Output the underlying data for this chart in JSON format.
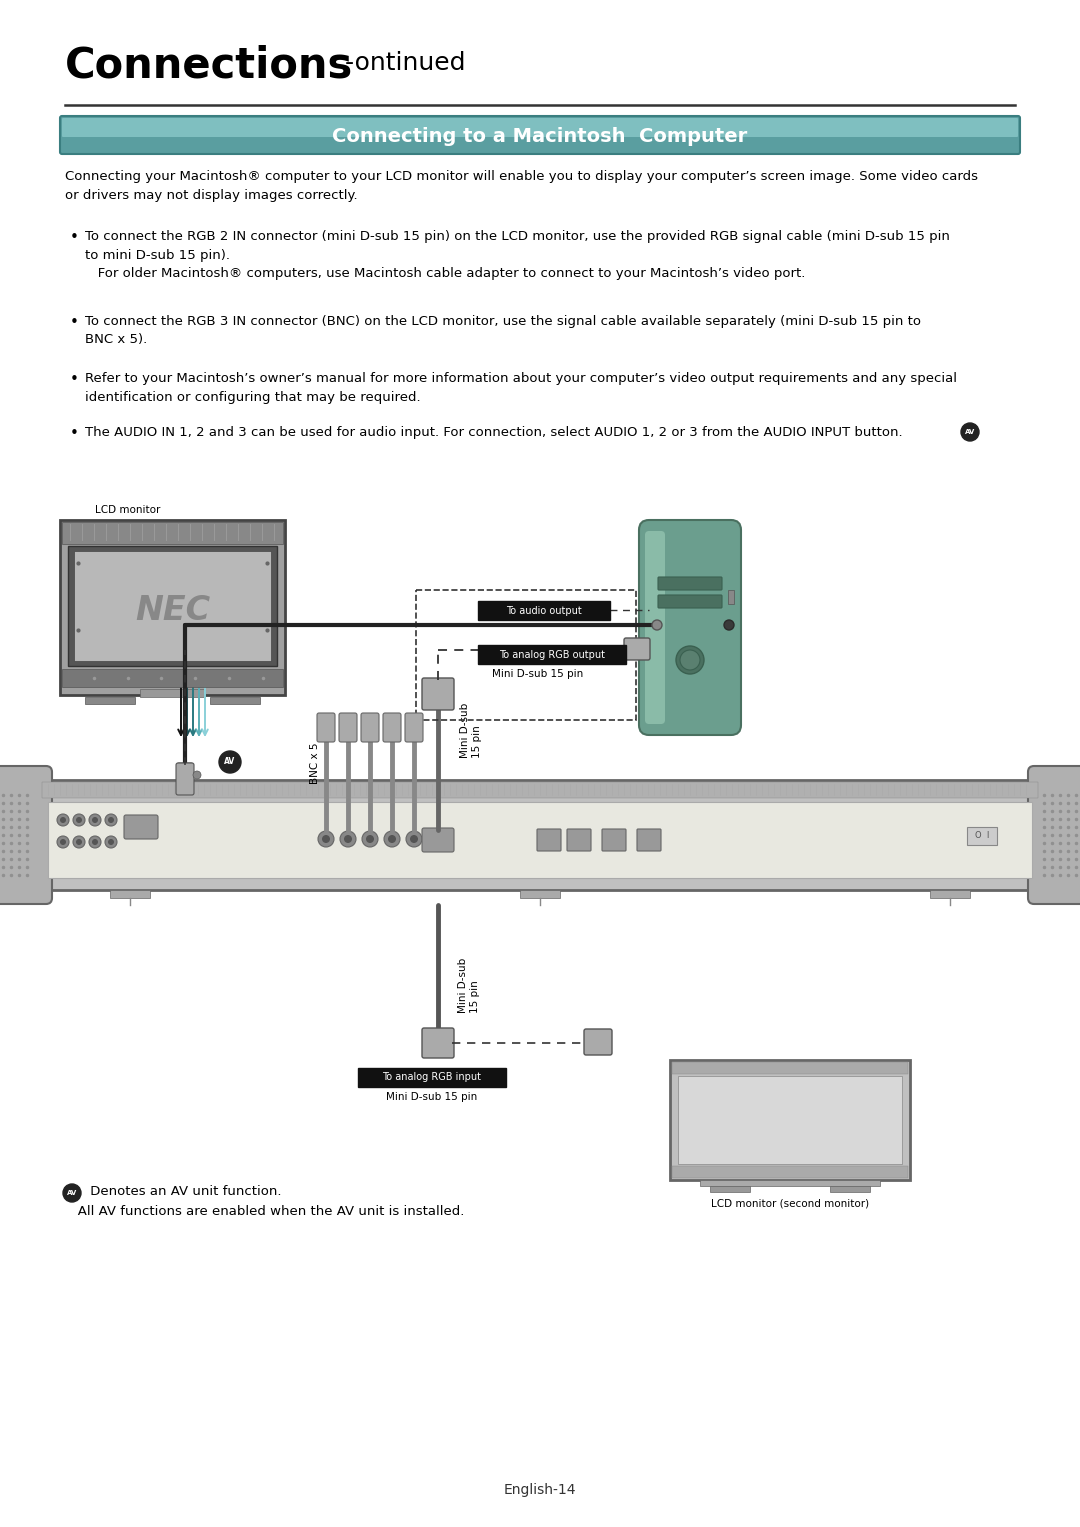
{
  "title_bold": "Connections",
  "title_suffix": " -ontinued",
  "section_title": "Connecting to a Macintosh  Computer",
  "body_intro": "Connecting your Macintosh® computer to your LCD monitor will enable you to display your computer’s screen image. Some video cards\nor drivers may not display images correctly.",
  "bullet1": "To connect the RGB 2 IN connector (mini D-sub 15 pin) on the LCD monitor, use the provided RGB signal cable (mini D-sub 15 pin\nto mini D-sub 15 pin).\n   For older Macintosh® computers, use Macintosh cable adapter to connect to your Macintosh’s video port.",
  "bullet2": "To connect the RGB 3 IN connector (BNC) on the LCD monitor, use the signal cable available separately (mini D-sub 15 pin to\nBNC x 5).",
  "bullet3": "Refer to your Macintosh’s owner’s manual for more information about your computer’s video output requirements and any special\nidentification or configuring that may be required.",
  "bullet4": "The AUDIO IN 1, 2 and 3 can be used for audio input. For connection, select AUDIO 1, 2 or 3 from the AUDIO INPUT button.",
  "fn_line1": " Denotes an AV unit function.",
  "fn_line2": "   All AV functions are enabled when the AV unit is installed.",
  "page_num": "English-14",
  "bg": "#ffffff",
  "text_c": "#000000",
  "gray_dark": "#555555",
  "gray_med": "#999999",
  "gray_light": "#cccccc",
  "gray_lighter": "#dddddd",
  "teal_header": "#5a9ea0",
  "teal_dark": "#3a7e80",
  "mac_teal": "#6b9e8e",
  "black_label": "#111111",
  "label_audio": "To audio output",
  "label_rgb_out": "To analog RGB output",
  "label_mini_dsub_mac": "Mini D-sub 15 pin",
  "label_bnc": "BNC x 5",
  "label_mini_dsub_rot": "Mini D-sub\n15 pin",
  "label_rgb_in": "To analog RGB input",
  "label_mini_dsub_bottom": "Mini D-sub 15 pin",
  "label_lcd": "LCD monitor",
  "label_lcd2": "LCD monitor (second monitor)"
}
